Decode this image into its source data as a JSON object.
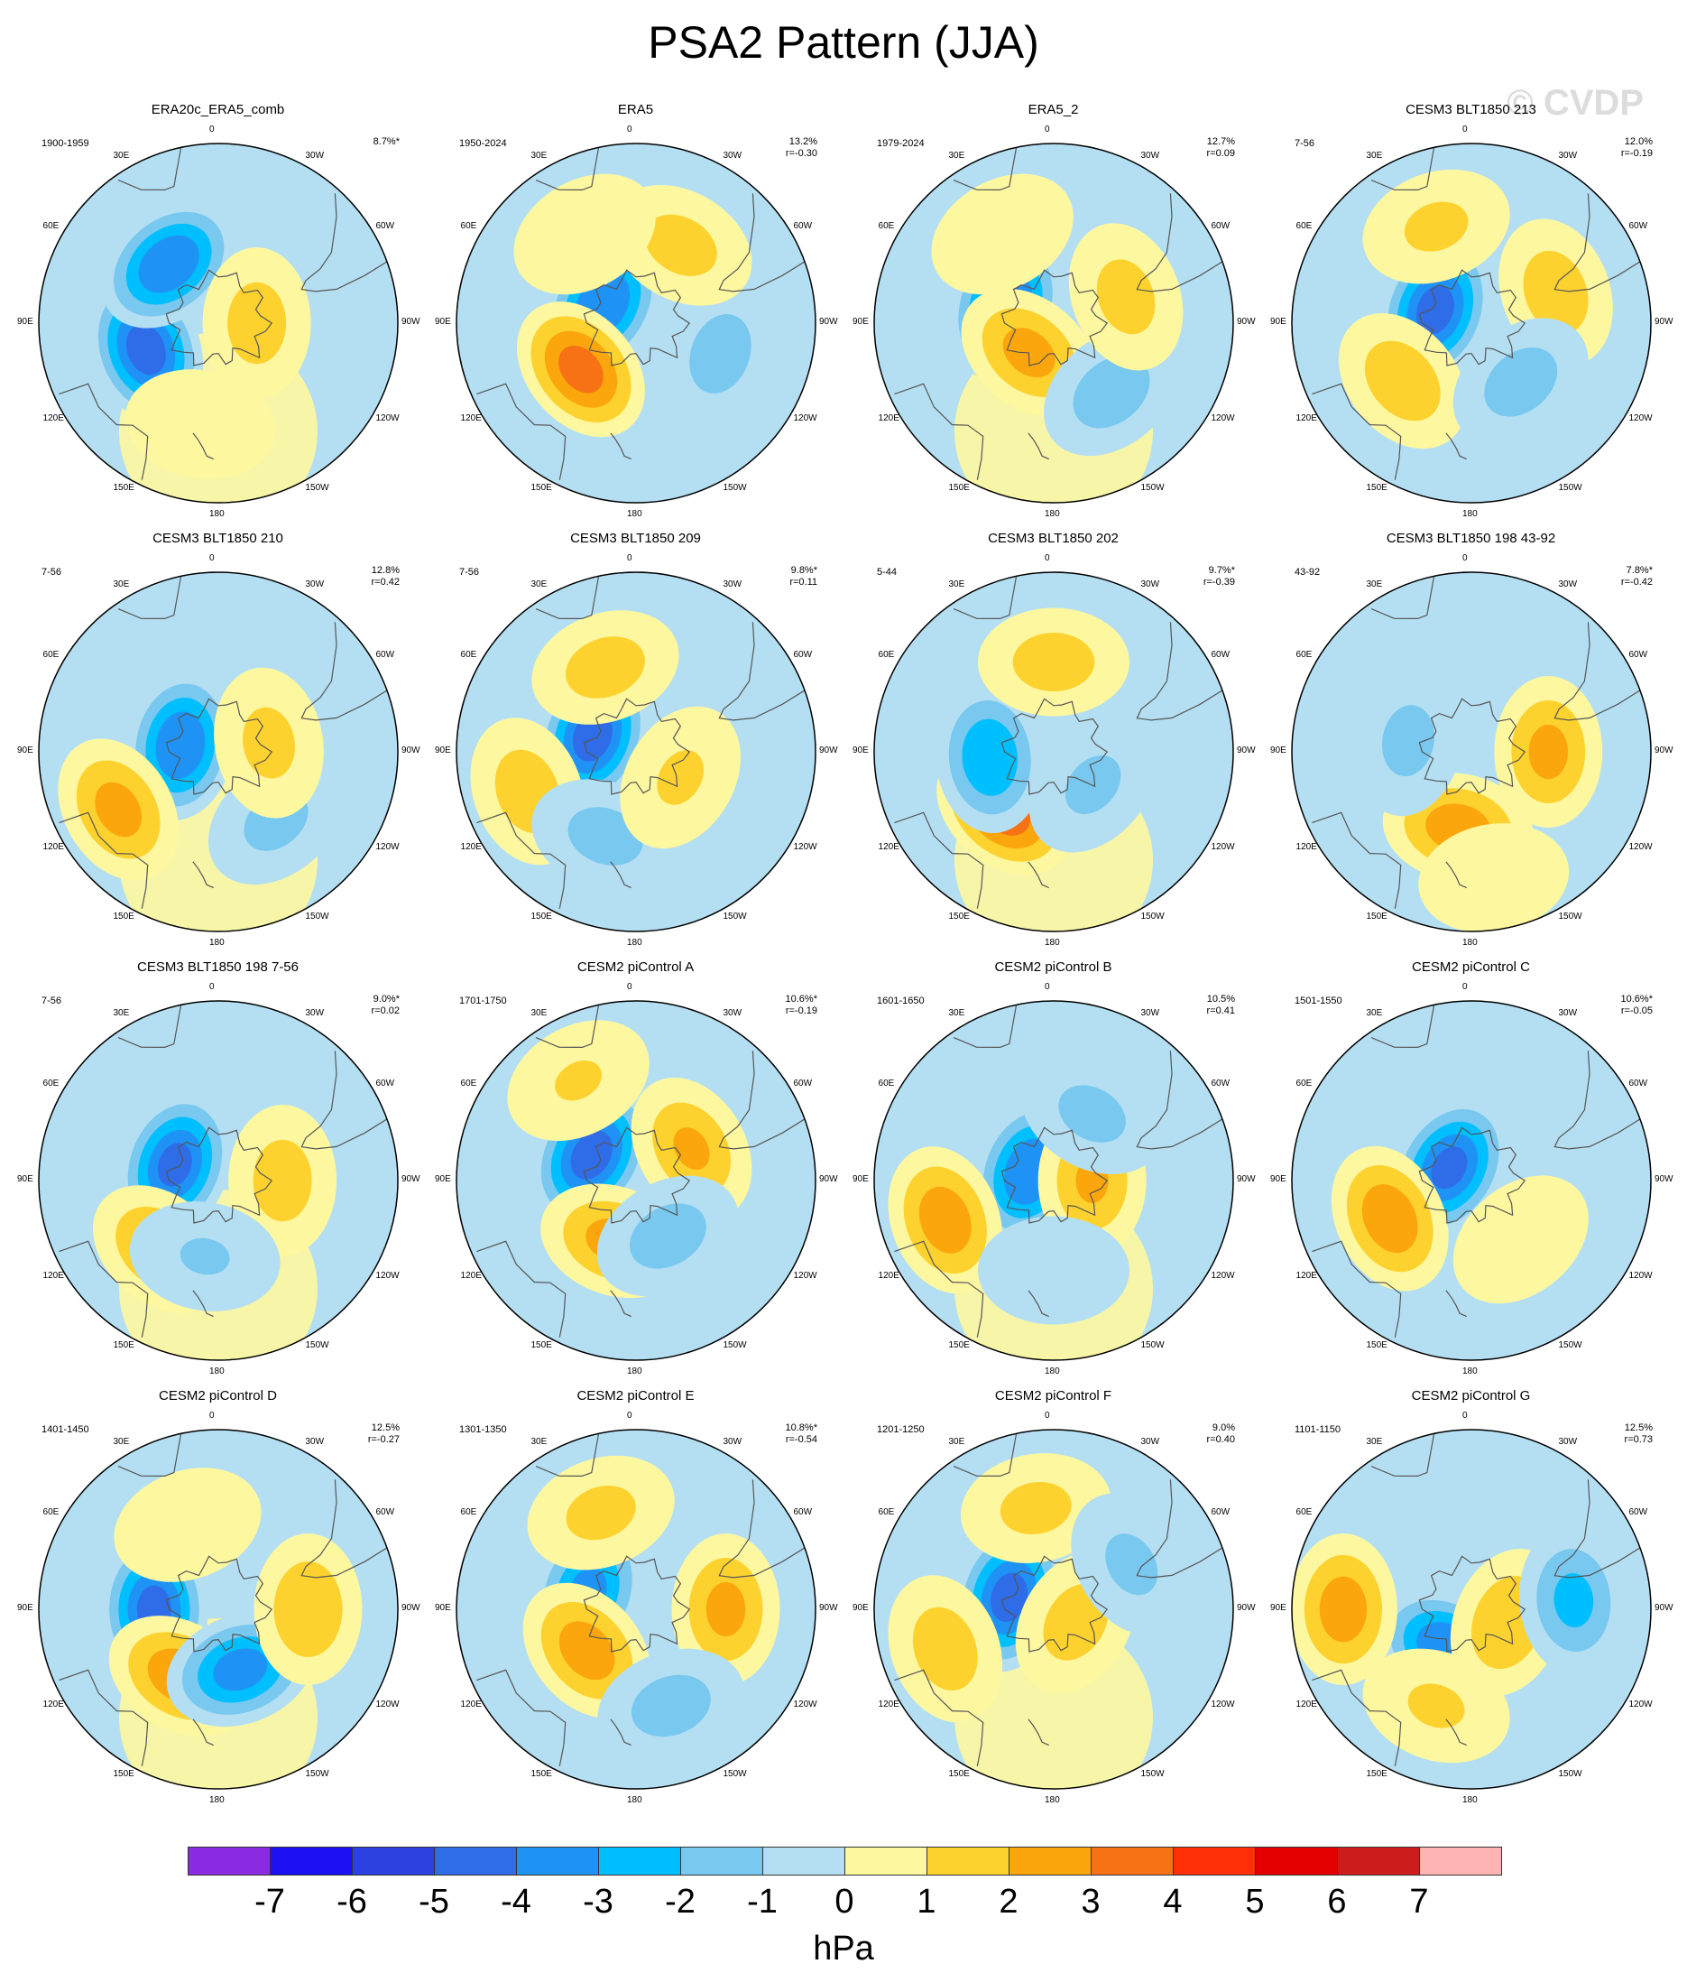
{
  "title": "PSA2 Pattern (JJA)",
  "watermark": "© CVDP",
  "colorbar": {
    "colors": [
      "#8a2be2",
      "#1c10f5",
      "#2b41e0",
      "#2f6de8",
      "#1e93f5",
      "#00bfff",
      "#79c8ef",
      "#b4dff2",
      "#fdf7a0",
      "#fdd22e",
      "#fba60c",
      "#f77214",
      "#ff2e06",
      "#e50000",
      "#cc1c1c",
      "#ffb4b4"
    ],
    "ticks": [
      "-7",
      "-6",
      "-5",
      "-4",
      "-3",
      "-2",
      "-1",
      "0",
      "1",
      "2",
      "3",
      "4",
      "5",
      "6",
      "7"
    ],
    "unit": "hPa"
  },
  "lon_labels": {
    "0": "0",
    "30w": "30W",
    "30e": "30E",
    "60w": "60W",
    "60e": "60E",
    "90w": "90W",
    "90e": "90E",
    "120w": "120W",
    "120e": "120E",
    "150w": "150W",
    "150e": "150E",
    "180": "180"
  },
  "chart_data": [
    {
      "type": "map",
      "title": "ERA20c_ERA5_comb",
      "period": "1900-1959",
      "pct": "8.7%*",
      "r": "",
      "centers": [
        {
          "lon": 110,
          "lat": -60,
          "v": -4.5
        },
        {
          "lon": 40,
          "lat": -60,
          "v": -4
        },
        {
          "lon": -90,
          "lat": -75,
          "v": 1.6
        },
        {
          "lon": 170,
          "lat": -50,
          "v": 0.6
        }
      ]
    },
    {
      "type": "map",
      "title": "ERA5",
      "period": "1950-2024",
      "pct": "13.2%",
      "r": "r=-0.30",
      "centers": [
        {
          "lon": 60,
          "lat": -75,
          "v": -4
        },
        {
          "lon": 130,
          "lat": -62,
          "v": 3.4
        },
        {
          "lon": -110,
          "lat": -55,
          "v": -1.6
        },
        {
          "lon": -30,
          "lat": -55,
          "v": 1.5
        },
        {
          "lon": 30,
          "lat": -50,
          "v": 0.7
        }
      ]
    },
    {
      "type": "map",
      "title": "ERA5_2",
      "period": "1979-2024",
      "pct": "12.7%",
      "r": "r=0.09",
      "centers": [
        {
          "lon": 70,
          "lat": -70,
          "v": -4.2
        },
        {
          "lon": 140,
          "lat": -75,
          "v": 2.4
        },
        {
          "lon": -140,
          "lat": -55,
          "v": -1.7
        },
        {
          "lon": -70,
          "lat": -60,
          "v": 1.5
        },
        {
          "lon": 30,
          "lat": -50,
          "v": 0.6
        }
      ]
    },
    {
      "type": "map",
      "title": "CESM3 BLT1850 213",
      "period": "7-56",
      "pct": "12.0%",
      "r": "r=-0.19",
      "centers": [
        {
          "lon": 70,
          "lat": -75,
          "v": -4.4
        },
        {
          "lon": -70,
          "lat": -55,
          "v": 1.7
        },
        {
          "lon": 130,
          "lat": -55,
          "v": 1.8
        },
        {
          "lon": -140,
          "lat": -60,
          "v": -1.6
        },
        {
          "lon": 20,
          "lat": -50,
          "v": 1.3
        }
      ]
    },
    {
      "type": "map",
      "title": "CESM3 BLT1850 210",
      "period": "7-56",
      "pct": "12.8%",
      "r": "r=0.42",
      "centers": [
        {
          "lon": 80,
          "lat": -75,
          "v": -4
        },
        {
          "lon": 120,
          "lat": -45,
          "v": 2.4
        },
        {
          "lon": -140,
          "lat": -55,
          "v": -1.4
        },
        {
          "lon": -80,
          "lat": -70,
          "v": 1.4
        }
      ]
    },
    {
      "type": "map",
      "title": "CESM3 BLT1850 209",
      "period": "7-56",
      "pct": "9.8%*",
      "r": "r=0.11",
      "centers": [
        {
          "lon": 70,
          "lat": -72,
          "v": -4.5
        },
        {
          "lon": 110,
          "lat": -45,
          "v": 1.7
        },
        {
          "lon": 160,
          "lat": -55,
          "v": -1.5
        },
        {
          "lon": 20,
          "lat": -55,
          "v": 1.6
        },
        {
          "lon": -120,
          "lat": -70,
          "v": 1.2
        }
      ]
    },
    {
      "type": "map",
      "title": "CESM3 BLT1850 202",
      "period": "5-44",
      "pct": "9.7%*",
      "r": "r=-0.39",
      "centers": [
        {
          "lon": 140,
          "lat": -60,
          "v": 3.6
        },
        {
          "lon": 95,
          "lat": -65,
          "v": -3
        },
        {
          "lon": 0,
          "lat": -55,
          "v": 1.6
        },
        {
          "lon": -130,
          "lat": -70,
          "v": -1.3
        }
      ]
    },
    {
      "type": "map",
      "title": "CESM3 BLT1850 198 43-92",
      "period": "43-92",
      "pct": "7.8%*",
      "r": "r=-0.42",
      "centers": [
        {
          "lon": 170,
          "lat": -60,
          "v": 2.6
        },
        {
          "lon": -90,
          "lat": -60,
          "v": 2.3
        },
        {
          "lon": 80,
          "lat": -65,
          "v": -1.4
        },
        {
          "lon": -170,
          "lat": -40,
          "v": 1.0
        }
      ]
    },
    {
      "type": "map",
      "title": "CESM3 BLT1850 198 7-56",
      "period": "7-56",
      "pct": "9.0%*",
      "r": "r=0.02",
      "centers": [
        {
          "lon": 70,
          "lat": -72,
          "v": -4.2
        },
        {
          "lon": 140,
          "lat": -55,
          "v": 2.2
        },
        {
          "lon": -90,
          "lat": -65,
          "v": 1.6
        },
        {
          "lon": 170,
          "lat": -60,
          "v": -1.1
        }
      ]
    },
    {
      "type": "map",
      "title": "CESM2 piControl A",
      "period": "1701-1750",
      "pct": "10.6%*",
      "r": "r=-0.19",
      "centers": [
        {
          "lon": 60,
          "lat": -70,
          "v": -4.5
        },
        {
          "lon": 160,
          "lat": -65,
          "v": 2.4
        },
        {
          "lon": -60,
          "lat": -65,
          "v": 2.1
        },
        {
          "lon": -150,
          "lat": -65,
          "v": -1.6
        },
        {
          "lon": 30,
          "lat": -45,
          "v": 1.1
        }
      ]
    },
    {
      "type": "map",
      "title": "CESM2 piControl B",
      "period": "1601-1650",
      "pct": "10.5%",
      "r": "r=0.41",
      "centers": [
        {
          "lon": 70,
          "lat": -80,
          "v": -4
        },
        {
          "lon": 110,
          "lat": -45,
          "v": 2.7
        },
        {
          "lon": -90,
          "lat": -75,
          "v": 2.1
        },
        {
          "lon": -30,
          "lat": -60,
          "v": -1.4
        },
        {
          "lon": 180,
          "lat": -55,
          "v": -0.7
        }
      ]
    },
    {
      "type": "map",
      "title": "CESM2 piControl C",
      "period": "1501-1550",
      "pct": "10.6%*",
      "r": "r=-0.05",
      "centers": [
        {
          "lon": 60,
          "lat": -80,
          "v": -4.2
        },
        {
          "lon": 115,
          "lat": -55,
          "v": 2.8
        },
        {
          "lon": -140,
          "lat": -60,
          "v": 1.0
        }
      ]
    },
    {
      "type": "map",
      "title": "CESM2 piControl D",
      "period": "1401-1450",
      "pct": "12.5%",
      "r": "r=-0.27",
      "centers": [
        {
          "lon": 90,
          "lat": -65,
          "v": -4.3
        },
        {
          "lon": 150,
          "lat": -60,
          "v": 2.7
        },
        {
          "lon": -160,
          "lat": -65,
          "v": -3.5
        },
        {
          "lon": -90,
          "lat": -55,
          "v": 2.0
        },
        {
          "lon": 20,
          "lat": -55,
          "v": 1.0
        }
      ]
    },
    {
      "type": "map",
      "title": "CESM2 piControl E",
      "period": "1301-1350",
      "pct": "10.8%*",
      "r": "r=-0.54",
      "centers": [
        {
          "lon": 70,
          "lat": -70,
          "v": -3.3
        },
        {
          "lon": 130,
          "lat": -65,
          "v": 2.6
        },
        {
          "lon": -90,
          "lat": -55,
          "v": 2.3
        },
        {
          "lon": -160,
          "lat": -50,
          "v": -1.6
        },
        {
          "lon": 20,
          "lat": -50,
          "v": 1.4
        }
      ]
    },
    {
      "type": "map",
      "title": "CESM2 piControl F",
      "period": "1201-1250",
      "pct": "9.0%",
      "r": "r=0.40",
      "centers": [
        {
          "lon": 75,
          "lat": -72,
          "v": -4.4
        },
        {
          "lon": 110,
          "lat": -45,
          "v": 1.7
        },
        {
          "lon": -120,
          "lat": -80,
          "v": 1.6
        },
        {
          "lon": 10,
          "lat": -50,
          "v": 1.4
        },
        {
          "lon": -60,
          "lat": -55,
          "v": -1.3
        }
      ]
    },
    {
      "type": "map",
      "title": "CESM2 piControl G",
      "period": "1101-1150",
      "pct": "12.5%",
      "r": "r=0.73",
      "centers": [
        {
          "lon": 150,
          "lat": -72,
          "v": -4
        },
        {
          "lon": 90,
          "lat": -40,
          "v": 2.6
        },
        {
          "lon": -110,
          "lat": -75,
          "v": 2.0
        },
        {
          "lon": -85,
          "lat": -50,
          "v": -2.3
        },
        {
          "lon": 160,
          "lat": -50,
          "v": 1.2
        }
      ]
    }
  ]
}
